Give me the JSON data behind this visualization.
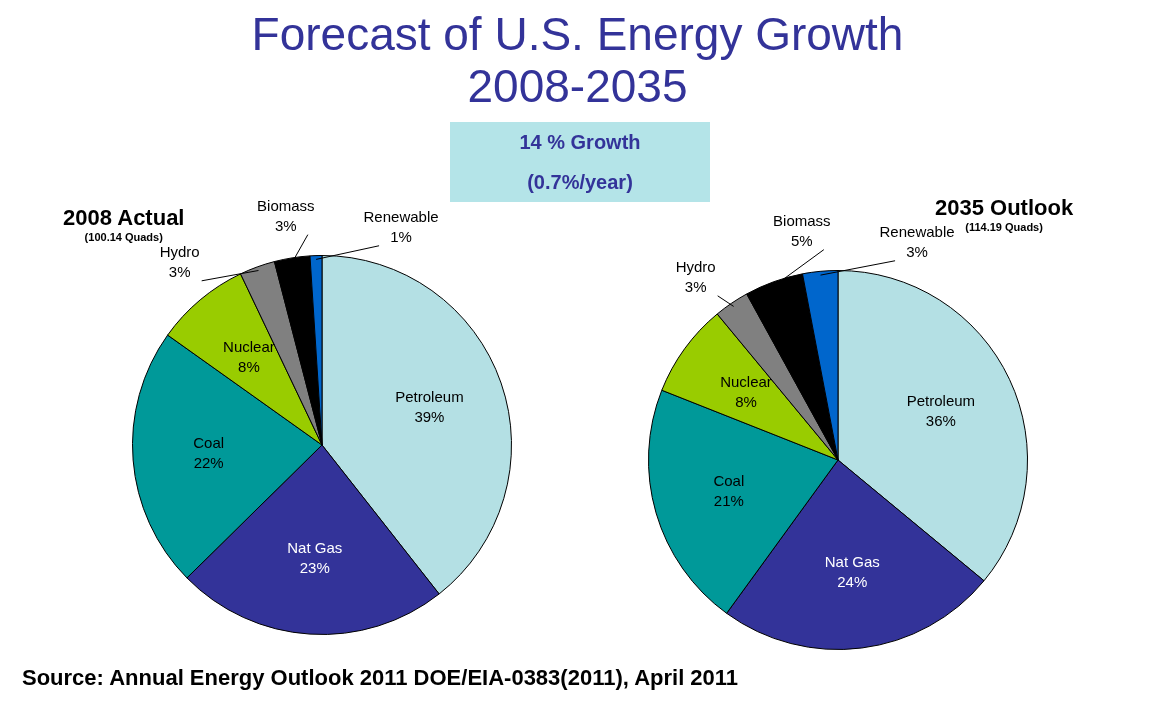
{
  "chart_data": [
    {
      "type": "other",
      "title": "Forecast of U.S. Energy Growth\n2008-2035",
      "annotations": [
        "14 % Growth",
        "(0.7%/year)",
        "Source: Annual Energy Outlook 2011 DOE/EIA-0383(2011), April 2011"
      ]
    },
    {
      "type": "pie",
      "title": "2008 Actual",
      "subtitle": "(100.14 Quads)",
      "legend": false,
      "categories": [
        "Petroleum",
        "Nat Gas",
        "Coal",
        "Nuclear",
        "Hydro",
        "Biomass",
        "Renewable"
      ],
      "values": [
        39,
        23,
        22,
        8,
        3,
        3,
        1
      ],
      "value_labels": [
        "39%",
        "23%",
        "22%",
        "8%",
        "3%",
        "3%",
        "1%"
      ],
      "colors": [
        "#b4e0e4",
        "#333399",
        "#009999",
        "#99cc00",
        "#808080",
        "#000000",
        "#0066cc"
      ]
    },
    {
      "type": "pie",
      "title": "2035 Outlook",
      "subtitle": "(114.19 Quads)",
      "legend": false,
      "categories": [
        "Petroleum",
        "Nat Gas",
        "Coal",
        "Nuclear",
        "Hydro",
        "Biomass",
        "Renewable"
      ],
      "values": [
        36,
        24,
        21,
        8,
        3,
        5,
        3
      ],
      "value_labels": [
        "36%",
        "24%",
        "21%",
        "8%",
        "3%",
        "5%",
        "3%"
      ],
      "colors": [
        "#b4e0e4",
        "#333399",
        "#009999",
        "#99cc00",
        "#808080",
        "#000000",
        "#0066cc"
      ]
    }
  ]
}
